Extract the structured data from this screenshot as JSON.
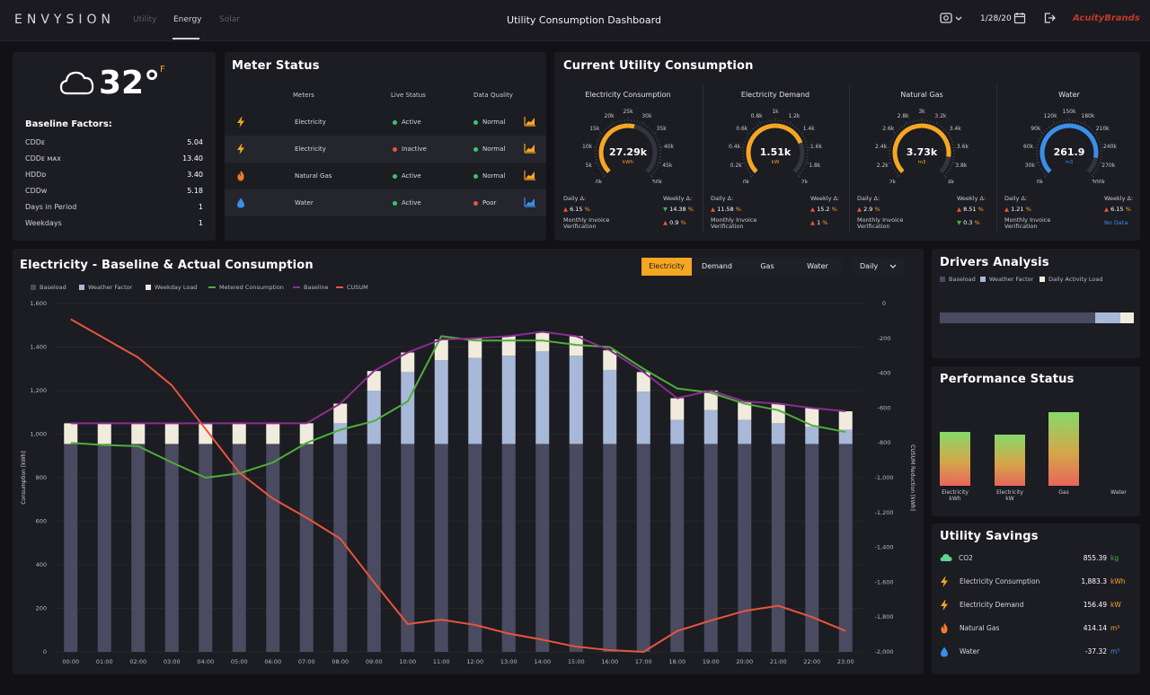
{
  "header": {
    "logo": "ENVYSION",
    "tabs": [
      {
        "label": "Utility"
      },
      {
        "label": "Energy"
      },
      {
        "label": "Solar"
      }
    ],
    "title": "Utility Consumption Dashboard",
    "date": "1/28/20",
    "brand": "AcuityBrands"
  },
  "weather": {
    "temperature": "32°",
    "unit": "F",
    "baseline_title": "Baseline Factors:",
    "factors": [
      {
        "label": "CDDᴇ",
        "value": "5.04"
      },
      {
        "label": "CDDᴇ ᴍᴀx",
        "value": "13.40"
      },
      {
        "label": "HDDᴅ",
        "value": "3.40"
      },
      {
        "label": "CDDᴡ",
        "value": "5.18"
      },
      {
        "label": "Days in Period",
        "value": "1"
      },
      {
        "label": "Weekdays",
        "value": "1"
      }
    ]
  },
  "meter_status": {
    "title": "Meter Status",
    "headers": {
      "meters": "Meters",
      "live": "Live Status",
      "quality": "Data Quality"
    },
    "rows": [
      {
        "icon": "bolt",
        "meter": "Electricity",
        "live": "Active",
        "quality": "Normal",
        "live_color": "#3cc46a",
        "quality_color": "#3cc46a",
        "spark_color": "#f5a623"
      },
      {
        "icon": "bolt",
        "meter": "Electricity",
        "live": "Inactive",
        "quality": "Normal",
        "live_color": "#e8553c",
        "quality_color": "#3cc46a",
        "spark_color": "#f5a623"
      },
      {
        "icon": "flame",
        "meter": "Natural Gas",
        "live": "Active",
        "quality": "Normal",
        "live_color": "#3cc46a",
        "quality_color": "#3cc46a",
        "spark_color": "#f5a623"
      },
      {
        "icon": "drop",
        "meter": "Water",
        "live": "Active",
        "quality": "Poor",
        "live_color": "#3cc46a",
        "quality_color": "#e8553c",
        "spark_color": "#3a8fe8"
      }
    ]
  },
  "current": {
    "title": "Current Utility Consumption",
    "gauges": [
      {
        "title": "Electricity Consumption",
        "value": "27.29k",
        "unit": "kWh",
        "fraction": 0.55,
        "color": "#f5a623",
        "ticks": [
          "0k",
          "5k",
          "10k",
          "15k",
          "20k",
          "25k",
          "30k",
          "35k",
          "40k",
          "45k",
          "50k"
        ],
        "daily": "6.15",
        "weekly": "14.38",
        "invoice": "0.9",
        "daily_dir": "up",
        "weekly_dir": "down",
        "invoice_dir": "up"
      },
      {
        "title": "Electricity Demand",
        "value": "1.51k",
        "unit": "kW",
        "fraction": 0.755,
        "color": "#f5a623",
        "ticks": [
          "0k",
          "0.2k",
          "0.4k",
          "0.6k",
          "0.8k",
          "1k",
          "1.2k",
          "1.4k",
          "1.6k",
          "1.8k",
          "2k"
        ],
        "daily": "11.58",
        "weekly": "15.2",
        "invoice": "1",
        "daily_dir": "up",
        "weekly_dir": "up",
        "invoice_dir": "up"
      },
      {
        "title": "Natural Gas",
        "value": "3.73k",
        "unit": "m3",
        "fraction": 0.865,
        "color": "#f5a623",
        "ticks": [
          "2k",
          "2.2k",
          "2.4k",
          "2.6k",
          "2.8k",
          "3k",
          "3.2k",
          "3.4k",
          "3.6k",
          "3.8k",
          "4k"
        ],
        "daily": "2.9",
        "weekly": "8.51",
        "invoice": "0.3",
        "daily_dir": "up",
        "weekly_dir": "up",
        "invoice_dir": "down"
      },
      {
        "title": "Water",
        "value": "261.9",
        "unit": "m3",
        "fraction": 0.873,
        "color": "#3a8fe8",
        "ticks": [
          "0k",
          "30k",
          "60k",
          "90k",
          "120k",
          "150k",
          "180k",
          "210k",
          "240k",
          "270k",
          "300k"
        ],
        "daily": "1.21",
        "weekly": "6.15",
        "invoice": "No Data",
        "daily_dir": "up",
        "weekly_dir": "up",
        "invoice_dir": "none"
      }
    ],
    "labels": {
      "daily": "Daily Δ:",
      "weekly": "Weekly Δ:",
      "invoice": "Monthly Invoice",
      "invoice2": "Verification",
      "pct": "%"
    }
  },
  "chart": {
    "title": "Electricity - Baseline & Actual Consumption",
    "tabs": [
      {
        "label": "Electricity"
      },
      {
        "label": "Demand"
      },
      {
        "label": "Gas"
      },
      {
        "label": "Water"
      }
    ],
    "period": "Daily",
    "legend": [
      {
        "label": "Baseload",
        "color": "#4a4a60",
        "kind": "square"
      },
      {
        "label": "Weather Factor",
        "color": "#a7b8d8",
        "kind": "square"
      },
      {
        "label": "Weekday Load",
        "color": "#f0ebdc",
        "kind": "square"
      },
      {
        "label": "Metered Consumption",
        "color": "#4caf3a",
        "kind": "line"
      },
      {
        "label": "Baseline",
        "color": "#8b2d8f",
        "kind": "line"
      },
      {
        "label": "CUSUM",
        "color": "#e8553c",
        "kind": "line"
      }
    ]
  },
  "chart_data": {
    "type": "bar",
    "title": "Electricity - Baseline & Actual Consumption",
    "xlabel": "",
    "ylabel": "Consumption [kWh]",
    "y2label": "CUSUM Reduction [kWh]",
    "ylim": [
      0,
      1600
    ],
    "y2lim": [
      -2000,
      0
    ],
    "yticks": [
      "0",
      "200",
      "400",
      "600",
      "800",
      "1,000",
      "1,200",
      "1,400",
      "1,600"
    ],
    "y2ticks": [
      "0",
      "-200",
      "-400",
      "-600",
      "-800",
      "-1,000",
      "-1,200",
      "-1,400",
      "-1,600",
      "-1,800",
      "-2,000"
    ],
    "categories": [
      "00:00",
      "01:00",
      "02:00",
      "03:00",
      "04:00",
      "05:00",
      "06:00",
      "07:00",
      "08:00",
      "09:00",
      "10:00",
      "11:00",
      "12:00",
      "13:00",
      "14:00",
      "15:00",
      "16:00",
      "17:00",
      "18:00",
      "19:00",
      "20:00",
      "21:00",
      "22:00",
      "23:00"
    ],
    "series": [
      {
        "name": "Baseload",
        "values": [
          955,
          955,
          955,
          955,
          955,
          955,
          955,
          955,
          955,
          955,
          955,
          955,
          955,
          955,
          955,
          955,
          955,
          955,
          955,
          955,
          955,
          955,
          955,
          955
        ]
      },
      {
        "name": "Weather Factor",
        "values": [
          0,
          0,
          0,
          0,
          0,
          0,
          0,
          0,
          95,
          245,
          330,
          385,
          395,
          405,
          425,
          405,
          340,
          240,
          110,
          155,
          110,
          95,
          80,
          65
        ]
      },
      {
        "name": "Weekday Load",
        "values": [
          95,
          95,
          95,
          95,
          95,
          95,
          95,
          95,
          90,
          90,
          90,
          95,
          90,
          90,
          90,
          90,
          90,
          90,
          100,
          90,
          85,
          90,
          85,
          85
        ]
      },
      {
        "name": "Metered Consumption",
        "values": [
          960,
          950,
          945,
          870,
          800,
          820,
          870,
          960,
          1020,
          1060,
          1150,
          1450,
          1430,
          1430,
          1430,
          1410,
          1400,
          1300,
          1210,
          1190,
          1140,
          1110,
          1040,
          1010
        ]
      },
      {
        "name": "Baseline",
        "values": [
          1050,
          1050,
          1050,
          1050,
          1050,
          1050,
          1050,
          1050,
          1140,
          1290,
          1375,
          1435,
          1440,
          1450,
          1470,
          1450,
          1385,
          1285,
          1165,
          1200,
          1150,
          1140,
          1120,
          1105
        ]
      },
      {
        "name": "CUSUM",
        "values": [
          -90,
          -200,
          -310,
          -470,
          -720,
          -970,
          -1120,
          -1230,
          -1350,
          -1600,
          -1840,
          -1815,
          -1845,
          -1895,
          -1930,
          -1970,
          -1990,
          -2000,
          -1880,
          -1820,
          -1765,
          -1735,
          -1800,
          -1880
        ]
      }
    ]
  },
  "drivers": {
    "title": "Drivers Analysis",
    "legend": [
      {
        "label": "Baseload",
        "color": "#4a4a60"
      },
      {
        "label": "Weather Factor",
        "color": "#a7b8d8"
      },
      {
        "label": "Daily Activity Load",
        "color": "#f0ebdc"
      }
    ],
    "shares": [
      0.8,
      0.13,
      0.07
    ]
  },
  "performance": {
    "title": "Performance Status",
    "bars": [
      {
        "label": "Electricity",
        "label2": "kWh",
        "value": 0.73
      },
      {
        "label": "Electricity",
        "label2": "kW",
        "value": 0.69
      },
      {
        "label": "Gas",
        "label2": "",
        "value": 1.0
      },
      {
        "label": "Water",
        "label2": "",
        "value": 0
      }
    ]
  },
  "savings": {
    "title": "Utility Savings",
    "rows": [
      {
        "icon": "cloud",
        "label": "CO2",
        "value": "855.39",
        "unit": "kg",
        "unit_color": "#4caf3a"
      },
      {
        "icon": "bolt",
        "label": "Electricity Consumption",
        "value": "1,883.3",
        "unit": "kWh",
        "unit_color": "#f5a623"
      },
      {
        "icon": "bolt",
        "label": "Electricity Demand",
        "value": "156.49",
        "unit": "kW",
        "unit_color": "#f5a623"
      },
      {
        "icon": "flame",
        "label": "Natural Gas",
        "value": "414.14",
        "unit": "m³",
        "unit_color": "#f5a623"
      },
      {
        "icon": "drop",
        "label": "Water",
        "value": "-37.32",
        "unit": "m³",
        "unit_color": "#3a8fe8"
      }
    ]
  }
}
